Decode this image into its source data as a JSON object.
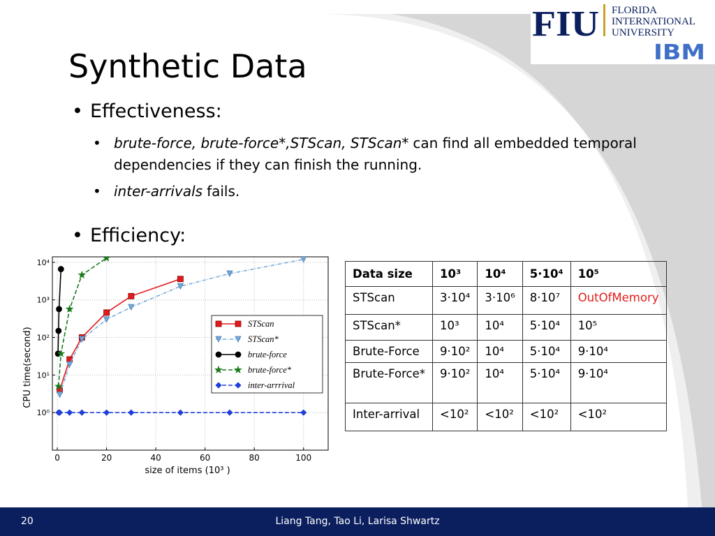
{
  "slide": {
    "title": "Synthetic Data",
    "bullets": [
      {
        "text": "Effectiveness:",
        "sub": [
          {
            "emphasis": "brute-force, brute-force*,STScan, STScan*",
            "text": "can find all embedded temporal dependencies if they can finish the running."
          },
          {
            "emphasis": "inter-arrivals",
            "text": "fails."
          }
        ]
      },
      {
        "text": "Efficiency:"
      }
    ]
  },
  "logos": {
    "fiu": "FIU",
    "fiu_lines": [
      "FLORIDA",
      "INTERNATIONAL",
      "UNIVERSITY"
    ],
    "ibm": "IBM"
  },
  "chart_data": {
    "type": "line",
    "xlabel": "size of items (10³ )",
    "ylabel": "CPU time(second)",
    "xlim": [
      -2,
      110
    ],
    "xticks": [
      0,
      20,
      40,
      60,
      80,
      100
    ],
    "yscale": "log",
    "ylim": [
      0.1,
      14000
    ],
    "yticks": [
      {
        "value": 1,
        "label": "10⁰"
      },
      {
        "value": 10,
        "label": "10¹"
      },
      {
        "value": 100,
        "label": "10²"
      },
      {
        "value": 1000,
        "label": "10³"
      },
      {
        "value": 10000,
        "label": "10⁴"
      }
    ],
    "grid": true,
    "legend": "upper right",
    "series": [
      {
        "name": "STScan",
        "color": "#e31a1c",
        "marker": "square",
        "dash": "solid",
        "x": [
          1,
          5,
          10,
          20,
          30,
          50
        ],
        "values": [
          4,
          26,
          100,
          460,
          1260,
          3600
        ]
      },
      {
        "name": "STScan*",
        "color": "#74a9d8",
        "marker": "triangle",
        "dash": "dashdot",
        "x": [
          1,
          5,
          10,
          20,
          30,
          50,
          70,
          100
        ],
        "values": [
          3,
          19,
          90,
          300,
          640,
          2300,
          5000,
          12000
        ]
      },
      {
        "name": "brute-force",
        "color": "#000000",
        "marker": "circle",
        "dash": "solid",
        "x": [
          0.3,
          0.5,
          0.7,
          1.5
        ],
        "values": [
          37,
          150,
          570,
          6600
        ]
      },
      {
        "name": "brute-force*",
        "color": "#1a7a1a",
        "marker": "star",
        "dash": "dashed",
        "x": [
          0.5,
          1.5,
          5,
          10,
          20
        ],
        "values": [
          5,
          37,
          570,
          4600,
          13000
        ]
      },
      {
        "name": "inter-arrrival",
        "color": "#1f3fd8",
        "marker": "diamond",
        "dash": "dashed",
        "x": [
          0.5,
          1,
          5,
          10,
          20,
          30,
          50,
          70,
          100
        ],
        "values": [
          1,
          1,
          1,
          1,
          1,
          1,
          1,
          1,
          1
        ]
      }
    ]
  },
  "table": {
    "header": [
      "Data size",
      "10³",
      "10⁴",
      "5·10⁴",
      "10⁵"
    ],
    "rows": [
      [
        "STScan",
        "3·10⁴",
        "3·10⁶",
        "8·10⁷",
        "OutOfMemory"
      ],
      [
        "STScan*",
        "10³",
        "10⁴",
        "5·10⁴",
        "10⁵"
      ],
      [
        "Brute-Force",
        "9·10²",
        "10⁴",
        "5·10⁴",
        "9·10⁴"
      ],
      [
        "Brute-Force*",
        "9·10²",
        "10⁴",
        "5·10⁴",
        "9·10⁴"
      ],
      [
        "Inter-arrival",
        "<10²",
        "<10²",
        "<10²",
        "<10²"
      ]
    ]
  },
  "footer": {
    "page": "20",
    "authors": "Liang Tang, Tao Li, Larisa Shwartz"
  }
}
